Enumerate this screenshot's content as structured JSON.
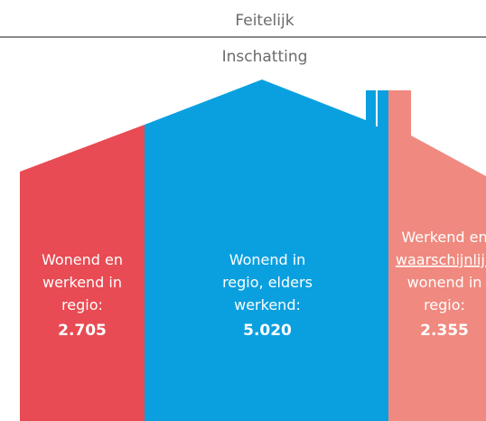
{
  "header": {
    "actual": "Feitelijk",
    "estimate": "Inschatting"
  },
  "sections": [
    {
      "lines": [
        "Wonend en",
        "werkend in",
        "regio:"
      ],
      "value": "2.705"
    },
    {
      "lines": [
        "Wonend in",
        "regio, elders",
        "werkend:"
      ],
      "value": "5.020"
    },
    {
      "lines": [
        "Werkend en",
        "waarschijnlijk",
        "wonend in",
        "regio:"
      ],
      "value": "2.355"
    }
  ]
}
